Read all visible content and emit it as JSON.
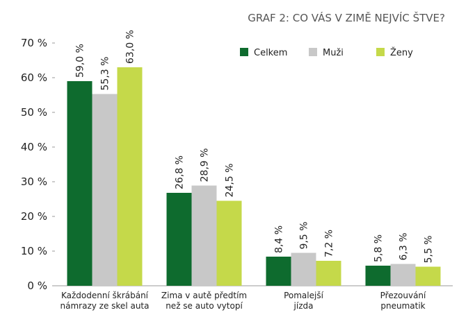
{
  "chart_data": {
    "type": "bar",
    "title": "GRAF 2: CO VÁS V ZIMĚ NEJVÍC ŠTVE?",
    "categories": [
      [
        "Každodenní škrábání",
        "námrazy ze skel auta"
      ],
      [
        "Zima v autě předtím",
        "než se auto vytopí"
      ],
      [
        "Pomalejší",
        "jízda"
      ],
      [
        "Přezouvání",
        "pneumatik"
      ]
    ],
    "series": [
      {
        "name": "Celkem",
        "color": "#0e6b2e",
        "values": [
          59.0,
          26.8,
          8.4,
          5.8
        ],
        "value_labels": [
          "59,0 %",
          "26,8 %",
          "8,4 %",
          "5,8 %"
        ]
      },
      {
        "name": "Muži",
        "color": "#c8c8c8",
        "values": [
          55.3,
          28.9,
          9.5,
          6.3
        ],
        "value_labels": [
          "55,3 %",
          "28,9 %",
          "9,5 %",
          "6,3 %"
        ]
      },
      {
        "name": "Ženy",
        "color": "#c5d94a",
        "values": [
          63.0,
          24.5,
          7.2,
          5.5
        ],
        "value_labels": [
          "63,0 %",
          "24,5 %",
          "7,2 %",
          "5,5 %"
        ]
      }
    ],
    "ylim": [
      0,
      70
    ],
    "yticks": [
      {
        "value": 0,
        "label": "0 %"
      },
      {
        "value": 10,
        "label": "10 %"
      },
      {
        "value": 20,
        "label": "20 %"
      },
      {
        "value": 30,
        "label": "30 %"
      },
      {
        "value": 40,
        "label": "40 %"
      },
      {
        "value": 50,
        "label": "50 %"
      },
      {
        "value": 60,
        "label": "60 %"
      },
      {
        "value": 70,
        "label": "70 %"
      }
    ],
    "grid": false,
    "legend": "top-right"
  }
}
